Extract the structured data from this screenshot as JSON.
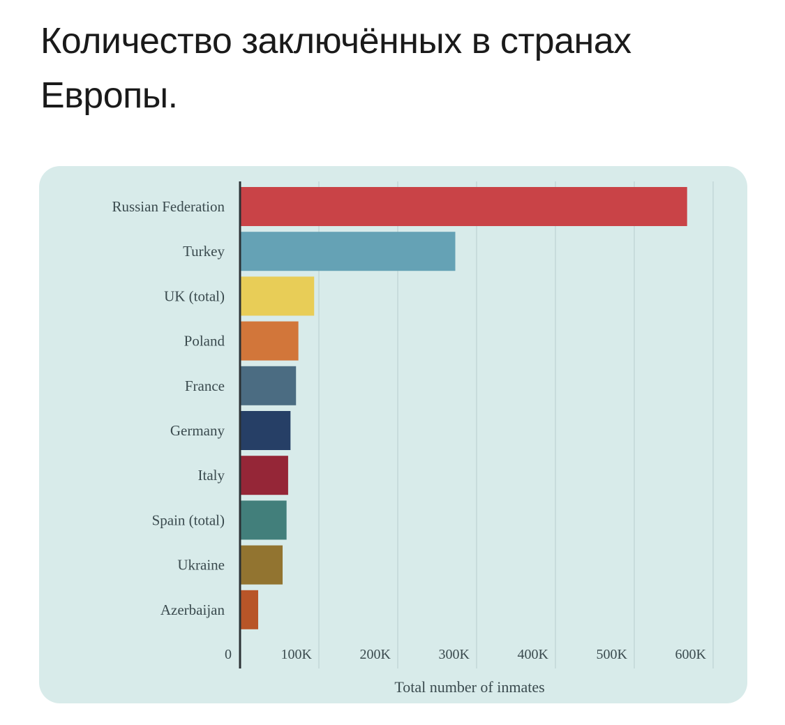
{
  "page": {
    "title": "Количество заключённых в странах Европы."
  },
  "chart_data": {
    "type": "bar",
    "orientation": "horizontal",
    "title": "",
    "xlabel": "Total number of inmates",
    "ylabel": "",
    "xlim": [
      0,
      610000
    ],
    "x_ticks": [
      0,
      100000,
      200000,
      300000,
      400000,
      500000,
      600000
    ],
    "x_tick_labels": [
      "0",
      "100K",
      "200K",
      "300K",
      "400K",
      "500K",
      "600K"
    ],
    "grid": true,
    "legend": "none",
    "categories": [
      "Russian Federation",
      "Turkey",
      "UK (total)",
      "Poland",
      "France",
      "Germany",
      "Italy",
      "Spain (total)",
      "Ukraine",
      "Azerbaijan"
    ],
    "values": [
      567000,
      273000,
      94000,
      74000,
      71000,
      64000,
      61000,
      59000,
      54000,
      23000
    ],
    "colors": [
      "#c94347",
      "#65a2b5",
      "#e8cd57",
      "#d2763a",
      "#4b6c82",
      "#263f66",
      "#952637",
      "#427f7b",
      "#927430",
      "#b85528"
    ]
  }
}
